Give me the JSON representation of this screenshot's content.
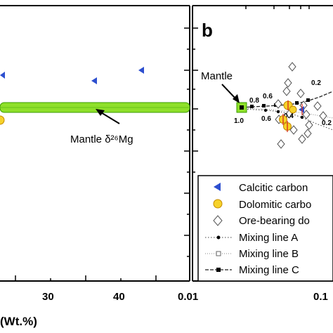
{
  "chart_data": [
    {
      "panel": "a",
      "type": "scatter",
      "xlabel": "(Wt.%)",
      "x_ticks": [
        "30",
        "40"
      ],
      "series": [
        {
          "name": "Calcitic carbonate",
          "marker": "blue-left-triangle",
          "color": "#2d4fcf",
          "points": [
            [
              8,
              -1.4
            ],
            [
              36.5,
              -1.55
            ],
            [
              43,
              -1.3
            ]
          ]
        },
        {
          "name": "Dolomitic carbonate",
          "marker": "yellow-circle",
          "color": "#f6d22a",
          "points": [
            [
              5,
              -2.35
            ]
          ]
        }
      ],
      "band": {
        "label": "Mantle δ²⁶Mg",
        "y": -2.0,
        "color": "#8fe02a"
      }
    },
    {
      "panel": "b",
      "panel_label": "b",
      "type": "scatter",
      "x_axis_scale": "log",
      "x_ticks": [
        "0.01",
        "0.1"
      ],
      "mantle_label": "Mantle",
      "mantle_point": {
        "x": 0.025,
        "y": -2.0
      },
      "series": [
        {
          "name": "Calcitic carbonate",
          "marker": "blue-left-triangle",
          "color": "#2d4fcf",
          "points": [
            [
              0.09,
              -2.1
            ]
          ]
        },
        {
          "name": "Dolomitic carbonate",
          "marker": "yellow-circle",
          "color": "#f6d22a",
          "points": [
            [
              0.058,
              -1.97
            ],
            [
              0.052,
              -2.3
            ],
            [
              0.06,
              -2.4
            ],
            [
              0.065,
              -2.05
            ]
          ]
        },
        {
          "name": "Ore-bearing dolomite",
          "marker": "open-diamond",
          "color": "#555555",
          "points": [
            [
              0.1,
              -1.2
            ],
            [
              0.085,
              -1.3
            ],
            [
              0.08,
              -1.55
            ],
            [
              0.095,
              -1.75
            ],
            [
              0.07,
              -1.85
            ],
            [
              0.075,
              -2.05
            ],
            [
              0.1,
              -1.9
            ],
            [
              0.11,
              -2.05
            ],
            [
              0.085,
              -2.25
            ],
            [
              0.09,
              -2.55
            ],
            [
              0.1,
              -2.7
            ],
            [
              0.06,
              -2.75
            ],
            [
              0.05,
              -3.05
            ],
            [
              0.12,
              -1.95
            ],
            [
              0.14,
              -2.15
            ]
          ]
        }
      ],
      "mixing_lines": [
        {
          "name": "Mixing line A",
          "style": "dotted-circle"
        },
        {
          "name": "Mixing line B",
          "style": "dotted-square"
        },
        {
          "name": "Mixing line C",
          "style": "dashed-square"
        }
      ],
      "mixing_labels": [
        "1.0",
        "0.8",
        "0.6",
        "0.6",
        "0.4",
        "0.2",
        "0.2"
      ],
      "legend": {
        "placement": "bottom-right",
        "entries": [
          "Calcitic carbon",
          "Dolomitic carbo",
          "Ore-bearing do",
          "Mixing line A",
          "Mixing line B",
          "Mixing line C"
        ]
      }
    }
  ]
}
